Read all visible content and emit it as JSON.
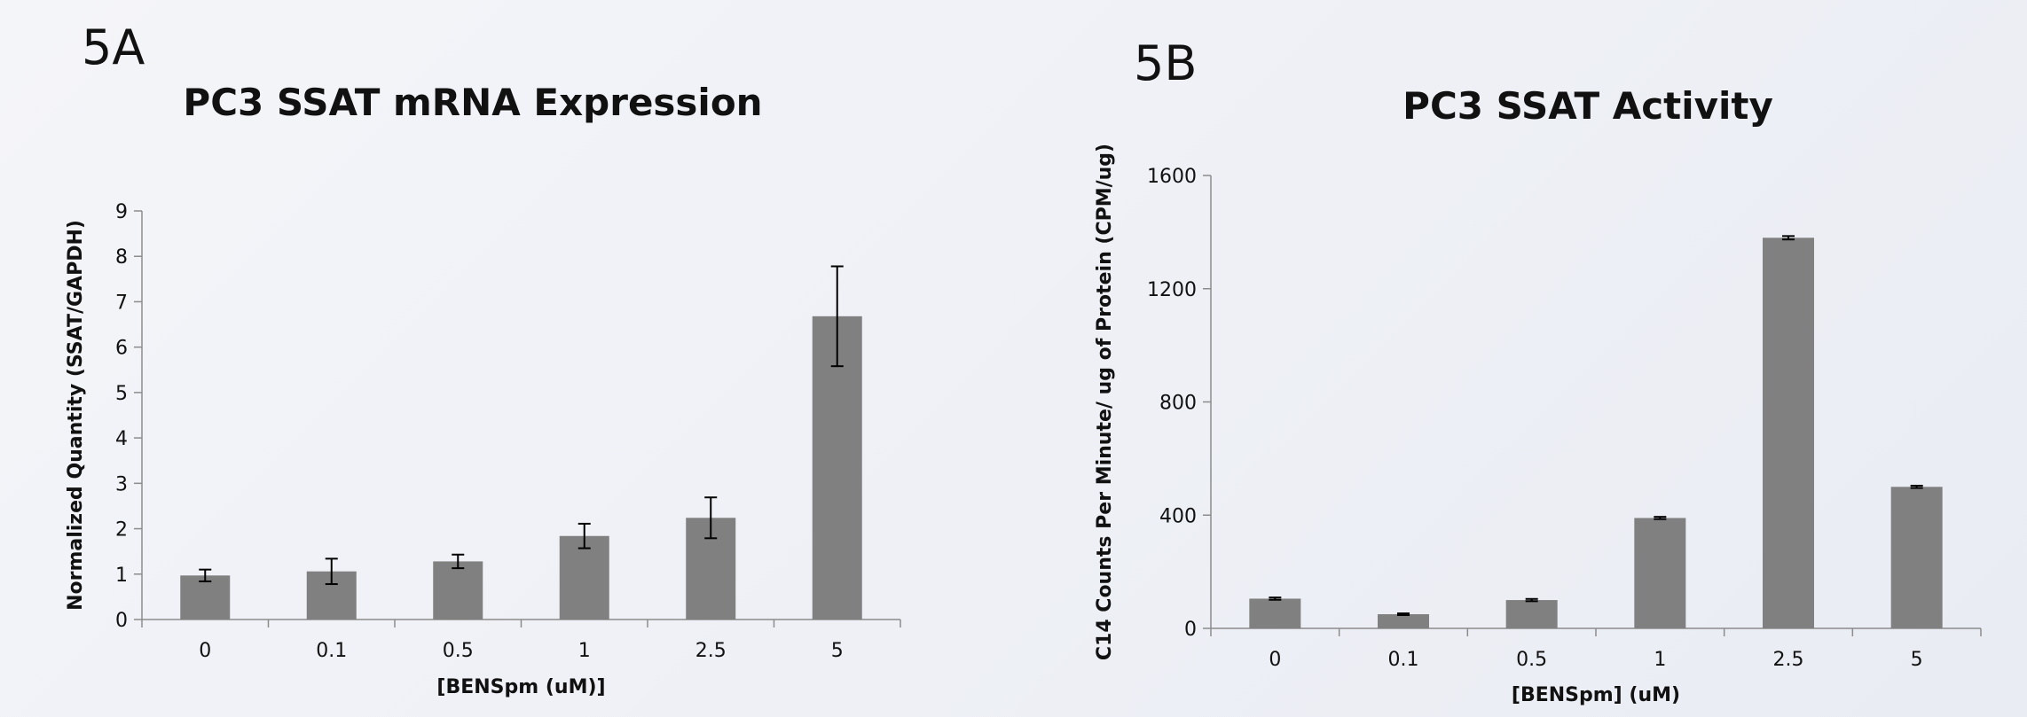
{
  "chart_data": [
    {
      "type": "bar",
      "panel_label": "5A",
      "title": "PC3 SSAT mRNA Expression",
      "xlabel": "[BENSpm (uM)]",
      "ylabel": "Normalized Quantity (SSAT/GAPDH)",
      "categories": [
        "0",
        "0.1",
        "0.5",
        "1",
        "2.5",
        "5"
      ],
      "values": [
        0.97,
        1.06,
        1.28,
        1.84,
        2.24,
        6.68
      ],
      "error": [
        0.13,
        0.28,
        0.15,
        0.27,
        0.45,
        1.1
      ],
      "ylim": [
        0,
        9
      ],
      "yticks": [
        0,
        1,
        2,
        3,
        4,
        5,
        6,
        7,
        8,
        9
      ],
      "bar_color": "#808080",
      "grid": false
    },
    {
      "type": "bar",
      "panel_label": "5B",
      "title": "PC3 SSAT Activity",
      "xlabel": "[BENSpm] (uM)",
      "ylabel": "C14 Counts Per Minute/ ug of Protein (CPM/ug)",
      "categories": [
        "0",
        "0.1",
        "0.5",
        "1",
        "2.5",
        "5"
      ],
      "values": [
        105,
        50,
        100,
        390,
        1380,
        500
      ],
      "error": [
        4,
        3,
        4,
        4,
        6,
        4
      ],
      "ylim": [
        0,
        1600
      ],
      "yticks": [
        0,
        400,
        800,
        1200,
        1600
      ],
      "bar_color": "#808080",
      "grid": false
    }
  ]
}
